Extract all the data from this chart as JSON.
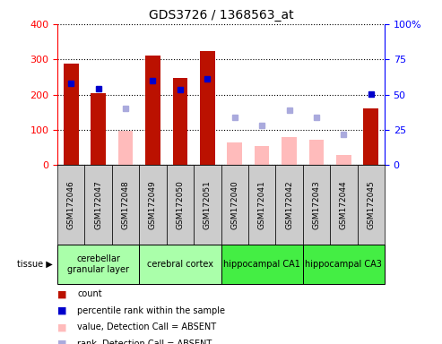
{
  "title": "GDS3726 / 1368563_at",
  "samples": [
    "GSM172046",
    "GSM172047",
    "GSM172048",
    "GSM172049",
    "GSM172050",
    "GSM172051",
    "GSM172040",
    "GSM172041",
    "GSM172042",
    "GSM172043",
    "GSM172044",
    "GSM172045"
  ],
  "count_present": [
    289,
    203,
    null,
    312,
    248,
    324,
    null,
    null,
    null,
    null,
    null,
    160
  ],
  "count_absent": [
    null,
    null,
    97,
    null,
    null,
    null,
    65,
    55,
    79,
    72,
    28,
    null
  ],
  "rank_present": [
    232,
    216,
    null,
    240,
    215,
    245,
    null,
    null,
    null,
    null,
    null,
    202
  ],
  "rank_absent": [
    null,
    null,
    162,
    null,
    null,
    null,
    135,
    112,
    157,
    136,
    87,
    null
  ],
  "tissues": [
    {
      "label": "cerebellar\ngranular layer",
      "start": 0,
      "end": 3,
      "color": "#aaffaa"
    },
    {
      "label": "cerebral cortex",
      "start": 3,
      "end": 6,
      "color": "#aaffaa"
    },
    {
      "label": "hippocampal CA1",
      "start": 6,
      "end": 9,
      "color": "#44ee44"
    },
    {
      "label": "hippocampal CA3",
      "start": 9,
      "end": 12,
      "color": "#44ee44"
    }
  ],
  "ylim_left": [
    0,
    400
  ],
  "ylim_right": [
    0,
    100
  ],
  "yticks_left": [
    0,
    100,
    200,
    300,
    400
  ],
  "yticks_right": [
    0,
    25,
    50,
    75,
    100
  ],
  "yticklabels_right": [
    "0",
    "25",
    "50",
    "75",
    "100%"
  ],
  "color_count_present": "#bb1100",
  "color_count_absent": "#ffbbbb",
  "color_rank_present": "#0000cc",
  "color_rank_absent": "#aaaadd",
  "bar_width": 0.55,
  "figsize": [
    4.93,
    3.84
  ],
  "dpi": 100,
  "background_axes": "#ffffff",
  "sample_box_color": "#cccccc",
  "legend_items": [
    {
      "color": "#bb1100",
      "label": "count"
    },
    {
      "color": "#0000cc",
      "label": "percentile rank within the sample"
    },
    {
      "color": "#ffbbbb",
      "label": "value, Detection Call = ABSENT"
    },
    {
      "color": "#aaaadd",
      "label": "rank, Detection Call = ABSENT"
    }
  ]
}
